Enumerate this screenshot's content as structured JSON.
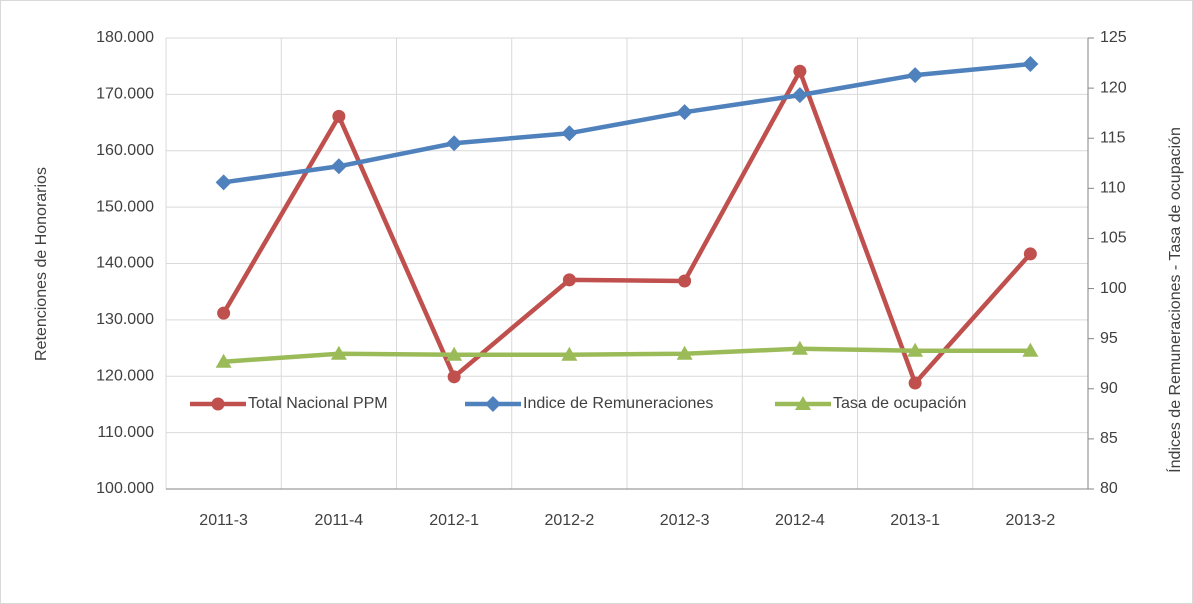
{
  "chart_data": {
    "type": "line",
    "categories": [
      "2011-3",
      "2011-4",
      "2012-1",
      "2012-2",
      "2012-3",
      "2012-4",
      "2013-1",
      "2013-2"
    ],
    "ylabel": "Retenciones de Honorarios",
    "y2label": "Índices de Remuneraciones - Tasa de ocupación",
    "ylim": [
      100000,
      180000
    ],
    "yticks": [
      {
        "value": 100000,
        "label": "100.000"
      },
      {
        "value": 110000,
        "label": "110.000"
      },
      {
        "value": 120000,
        "label": "120.000"
      },
      {
        "value": 130000,
        "label": "130.000"
      },
      {
        "value": 140000,
        "label": "140.000"
      },
      {
        "value": 150000,
        "label": "150.000"
      },
      {
        "value": 160000,
        "label": "160.000"
      },
      {
        "value": 170000,
        "label": "170.000"
      },
      {
        "value": 180000,
        "label": "180.000"
      }
    ],
    "y2lim": [
      80,
      125
    ],
    "y2ticks": [
      80,
      85,
      90,
      95,
      100,
      105,
      110,
      115,
      120,
      125
    ],
    "grid": true,
    "legend": "bottom",
    "series": [
      {
        "name": "Total Nacional PPM",
        "color": "#c0504d",
        "marker": "circle",
        "axis": "y",
        "values": [
          131200,
          166100,
          119900,
          137100,
          136900,
          174100,
          118800,
          141700
        ]
      },
      {
        "name": "Indice de Remuneraciones",
        "color": "#4f81bd",
        "marker": "diamond",
        "axis": "y2",
        "values": [
          110.6,
          112.2,
          114.5,
          115.5,
          117.6,
          119.3,
          121.3,
          122.4
        ]
      },
      {
        "name": "Tasa de ocupación",
        "color": "#9bbb59",
        "marker": "triangle",
        "axis": "y2",
        "values": [
          92.7,
          93.5,
          93.4,
          93.4,
          93.5,
          94.0,
          93.8,
          93.8
        ]
      }
    ]
  }
}
